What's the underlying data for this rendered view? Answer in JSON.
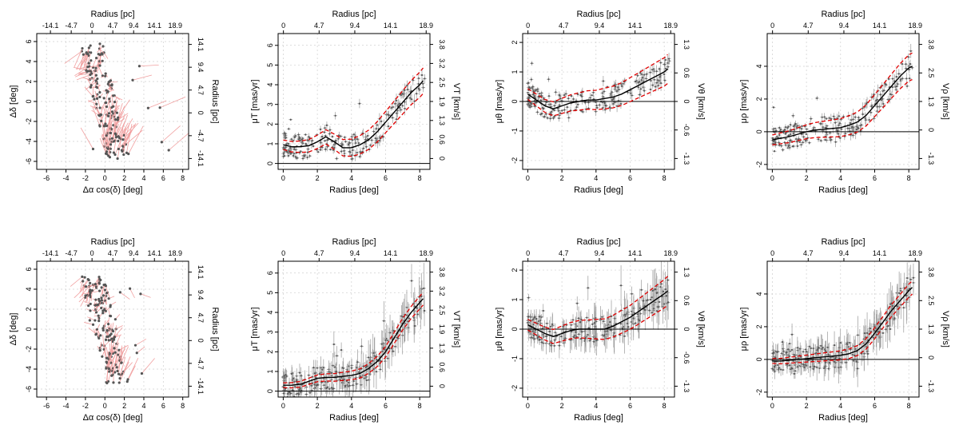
{
  "chart_data": [
    {
      "id": "A1",
      "type": "scatter",
      "panel": "spatial",
      "xlabel": "Δα cos(δ) [deg]",
      "ylabel": "Δδ [deg]",
      "top_label": "Radius [pc]",
      "right_label": "Radius [pc]",
      "xlim": [
        -7,
        8.6
      ],
      "ylim": [
        -6.8,
        6.8
      ],
      "xticks": [
        "-6",
        "-4",
        "-2",
        "0",
        "2",
        "4",
        "6",
        "8"
      ],
      "yticks": [
        "-6",
        "-4",
        "-2",
        "0",
        "2",
        "4",
        "6"
      ],
      "top_ticks": [
        "-14.1",
        "-4.7",
        "0",
        "4.7",
        "9.4",
        "14.1",
        "18.9"
      ],
      "right_ticks": [
        "-14.1",
        "-4.7",
        "0",
        "4.7",
        "9.4",
        "14.1"
      ]
    },
    {
      "id": "B1",
      "type": "line",
      "panel": "profile",
      "xlabel": "Radius [deg]",
      "ylabel": "μT [mas/yr]",
      "top_label": "Radius [pc]",
      "right_label": "VT [km/s]",
      "xlim": [
        -0.3,
        8.6
      ],
      "ylim": [
        -0.3,
        6.6
      ],
      "xticks": [
        "0",
        "2",
        "4",
        "6",
        "8"
      ],
      "yticks": [
        "0",
        "1",
        "2",
        "3",
        "4",
        "5",
        "6"
      ],
      "top_ticks": [
        "0",
        "4.7",
        "9.4",
        "14.1",
        "18.9"
      ],
      "right_ticks": [
        "0",
        "0.6",
        "1.3",
        "1.9",
        "2.5",
        "3.2",
        "3.8"
      ],
      "fit": {
        "x": [
          0,
          0.5,
          1,
          1.5,
          2,
          2.5,
          3,
          3.5,
          4,
          4.5,
          5,
          5.5,
          6,
          6.5,
          7,
          7.5,
          8,
          8.2
        ],
        "y": [
          0.95,
          0.85,
          0.85,
          0.9,
          1.1,
          1.35,
          1.1,
          0.8,
          0.8,
          0.95,
          1.2,
          1.6,
          2.1,
          2.6,
          3.1,
          3.6,
          4.0,
          4.2
        ]
      },
      "band_offset": 0.4
    },
    {
      "id": "C1",
      "type": "line",
      "panel": "profile",
      "xlabel": "Radius [deg]",
      "ylabel": "μθ [mas/yr]",
      "top_label": "Radius [pc]",
      "right_label": "Vθ [km/s]",
      "xlim": [
        -0.3,
        8.6
      ],
      "ylim": [
        -2.3,
        2.3
      ],
      "xticks": [
        "0",
        "2",
        "4",
        "6",
        "8"
      ],
      "yticks": [
        "-2",
        "-1",
        "0",
        "1",
        "2"
      ],
      "top_ticks": [
        "0",
        "4.7",
        "9.4",
        "14.1",
        "18.9"
      ],
      "right_ticks": [
        "-1.3",
        "-0.6",
        "0",
        "0.6",
        "1.3"
      ],
      "fit": {
        "x": [
          0,
          0.5,
          1,
          1.5,
          2,
          2.5,
          3,
          3.5,
          4,
          4.5,
          5,
          5.5,
          6,
          6.5,
          7,
          7.5,
          8,
          8.2
        ],
        "y": [
          0.25,
          0.05,
          -0.15,
          -0.25,
          -0.15,
          -0.05,
          0.0,
          0.05,
          0.05,
          0.1,
          0.15,
          0.25,
          0.4,
          0.55,
          0.7,
          0.85,
          1.0,
          1.1
        ]
      },
      "band_offset": 0.3
    },
    {
      "id": "D1",
      "type": "line",
      "panel": "profile",
      "xlabel": "Radius [deg]",
      "ylabel": "μρ [mas/yr]",
      "top_label": "Radius [pc]",
      "right_label": "Vρ [km/s]",
      "xlim": [
        -0.3,
        8.6
      ],
      "ylim": [
        -2.3,
        6.0
      ],
      "xticks": [
        "0",
        "2",
        "4",
        "6",
        "8"
      ],
      "yticks": [
        "-2",
        "0",
        "2",
        "4"
      ],
      "top_ticks": [
        "0",
        "4.7",
        "9.4",
        "14.1",
        "18.9"
      ],
      "right_ticks": [
        "-1.3",
        "0",
        "1.3",
        "2.5",
        "3.8"
      ],
      "fit": {
        "x": [
          0,
          0.5,
          1,
          1.5,
          2,
          2.5,
          3,
          3.5,
          4,
          4.5,
          5,
          5.5,
          6,
          6.5,
          7,
          7.5,
          8,
          8.2
        ],
        "y": [
          -0.5,
          -0.4,
          -0.3,
          -0.15,
          0.0,
          0.1,
          0.15,
          0.2,
          0.25,
          0.4,
          0.6,
          1.0,
          1.6,
          2.2,
          2.8,
          3.4,
          3.9,
          4.0
        ]
      },
      "band_offset": 0.5
    },
    {
      "id": "A2",
      "type": "scatter",
      "panel": "spatial",
      "xlabel": "Δα cos(δ) [deg]",
      "ylabel": "Δδ [deg]",
      "top_label": "Radius [pc]",
      "right_label": "Radius [pc]",
      "xlim": [
        -7,
        8.6
      ],
      "ylim": [
        -6.8,
        6.8
      ],
      "xticks": [
        "-6",
        "-4",
        "-2",
        "0",
        "2",
        "4",
        "6",
        "8"
      ],
      "yticks": [
        "-6",
        "-4",
        "-2",
        "0",
        "2",
        "4",
        "6"
      ],
      "top_ticks": [
        "-14.1",
        "-4.7",
        "0",
        "4.7",
        "9.4",
        "14.1",
        "18.9"
      ],
      "right_ticks": [
        "-14.1",
        "-4.7",
        "0",
        "4.7",
        "9.4",
        "14.1"
      ]
    },
    {
      "id": "B2",
      "type": "line",
      "panel": "profile",
      "xlabel": "Radius [deg]",
      "ylabel": "μT [mas/yr]",
      "top_label": "Radius [pc]",
      "right_label": "VT [km/s]",
      "xlim": [
        -0.3,
        8.6
      ],
      "ylim": [
        -0.3,
        6.6
      ],
      "xticks": [
        "0",
        "2",
        "4",
        "6",
        "8"
      ],
      "yticks": [
        "0",
        "1",
        "2",
        "3",
        "4",
        "5",
        "6"
      ],
      "top_ticks": [
        "0",
        "4.7",
        "9.4",
        "14.1",
        "18.9"
      ],
      "right_ticks": [
        "0",
        "0.6",
        "1.3",
        "1.9",
        "2.5",
        "3.2",
        "3.8"
      ],
      "fit": {
        "x": [
          0,
          0.5,
          1,
          1.5,
          2,
          2.5,
          3,
          3.5,
          4,
          4.5,
          5,
          5.5,
          6,
          6.5,
          7,
          7.5,
          8,
          8.2
        ],
        "y": [
          0.3,
          0.3,
          0.35,
          0.5,
          0.65,
          0.7,
          0.7,
          0.75,
          0.8,
          0.9,
          1.15,
          1.5,
          2.0,
          2.7,
          3.4,
          4.0,
          4.5,
          4.7
        ]
      },
      "band_offset": 0.2
    },
    {
      "id": "C2",
      "type": "line",
      "panel": "profile",
      "xlabel": "Radius [deg]",
      "ylabel": "μθ [mas/yr]",
      "top_label": "Radius [pc]",
      "right_label": "Vθ [km/s]",
      "xlim": [
        -0.3,
        8.6
      ],
      "ylim": [
        -2.3,
        2.3
      ],
      "xticks": [
        "0",
        "2",
        "4",
        "6",
        "8"
      ],
      "yticks": [
        "-2",
        "-1",
        "0",
        "1",
        "2"
      ],
      "top_ticks": [
        "0",
        "4.7",
        "9.4",
        "14.1",
        "18.9"
      ],
      "right_ticks": [
        "-1.3",
        "-0.6",
        "0",
        "0.6",
        "1.3"
      ],
      "fit": {
        "x": [
          0,
          0.5,
          1,
          1.5,
          2,
          2.5,
          3,
          3.5,
          4,
          4.5,
          5,
          5.5,
          6,
          6.5,
          7,
          7.5,
          8,
          8.2
        ],
        "y": [
          0.15,
          0.0,
          -0.15,
          -0.25,
          -0.15,
          -0.05,
          0.0,
          0.0,
          0.0,
          0.0,
          0.1,
          0.25,
          0.4,
          0.6,
          0.8,
          1.0,
          1.2,
          1.3
        ]
      },
      "band_offset": 0.3
    },
    {
      "id": "D2",
      "type": "line",
      "panel": "profile",
      "xlabel": "Radius [deg]",
      "ylabel": "μρ [mas/yr]",
      "top_label": "Radius [pc]",
      "right_label": "Vρ [km/s]",
      "xlim": [
        -0.3,
        8.6
      ],
      "ylim": [
        -2.3,
        6.0
      ],
      "xticks": [
        "0",
        "2",
        "4",
        "6",
        "8"
      ],
      "yticks": [
        "-2",
        "0",
        "2",
        "4"
      ],
      "top_ticks": [
        "0",
        "4.7",
        "9.4",
        "14.1",
        "18.9"
      ],
      "right_ticks": [
        "-1.3",
        "0",
        "1.3",
        "2.5",
        "3.8"
      ],
      "fit": {
        "x": [
          0,
          0.5,
          1,
          1.5,
          2,
          2.5,
          3,
          3.5,
          4,
          4.5,
          5,
          5.5,
          6,
          6.5,
          7,
          7.5,
          8,
          8.2
        ],
        "y": [
          -0.1,
          -0.1,
          -0.05,
          0.0,
          0.05,
          0.1,
          0.15,
          0.2,
          0.25,
          0.35,
          0.55,
          0.95,
          1.6,
          2.3,
          3.0,
          3.6,
          4.2,
          4.4
        ]
      },
      "band_offset": 0.25
    }
  ],
  "colors": {
    "fit": "#000000",
    "band": "#e00000",
    "points": "#555555",
    "errorbars": "#9a9a9a",
    "arrows": "#f1a0a0"
  }
}
